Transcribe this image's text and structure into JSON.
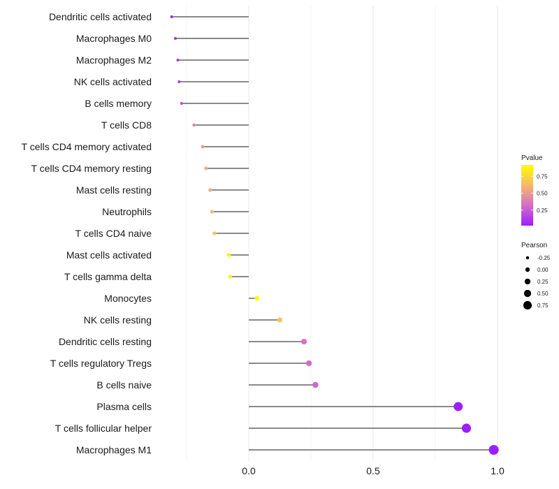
{
  "chart_data": {
    "type": "lollipop",
    "title": "",
    "xlabel": "",
    "ylabel": "",
    "xlim": [
      -0.32,
      1.02
    ],
    "x_ticks": [
      0.0,
      0.5,
      1.0
    ],
    "x_tick_labels": [
      "0.0",
      "0.5",
      "1.0"
    ],
    "grid": true,
    "categories": [
      "Dendritic cells activated",
      "Macrophages M0",
      "Macrophages M2",
      "NK cells activated",
      "B cells memory",
      "T cells CD8",
      "T cells CD4 memory activated",
      "T cells CD4 memory resting",
      "Mast cells resting",
      "Neutrophils",
      "T cells CD4 naive",
      "Mast cells activated",
      "T cells gamma delta",
      "Monocytes",
      "NK cells resting",
      "Dendritic cells resting",
      "T cells regulatory  Tregs",
      "B cells naive",
      "Plasma cells",
      "T cells follicular helper",
      "Macrophages M1"
    ],
    "pearson": [
      -0.31,
      -0.295,
      -0.285,
      -0.28,
      -0.27,
      -0.22,
      -0.185,
      -0.172,
      -0.155,
      -0.148,
      -0.138,
      -0.08,
      -0.075,
      0.033,
      0.125,
      0.222,
      0.242,
      0.268,
      0.842,
      0.875,
      0.985
    ],
    "pvalue": [
      0.03,
      0.08,
      0.12,
      0.14,
      0.2,
      0.45,
      0.55,
      0.6,
      0.62,
      0.68,
      0.7,
      0.93,
      0.95,
      0.99,
      0.72,
      0.35,
      0.32,
      0.3,
      0.0,
      0.0,
      0.0
    ],
    "legend": {
      "pvalue": {
        "title": "Pvalue",
        "ticks": [
          0.25,
          0.5,
          0.75
        ],
        "tick_labels": [
          "0.25",
          "0.50",
          "0.75"
        ],
        "colors": [
          "#9b1fff",
          "#d36ec6",
          "#f4b96c",
          "#ffff00"
        ]
      },
      "pearson": {
        "title": "Pearson",
        "values": [
          -0.25,
          0.0,
          0.25,
          0.5,
          0.75
        ],
        "labels": [
          "-0.25",
          "0.00",
          "0.25",
          "0.50",
          "0.75"
        ]
      },
      "placement": "right"
    },
    "colors": {
      "stem": "#444444",
      "grid": "#ebebeb"
    }
  }
}
